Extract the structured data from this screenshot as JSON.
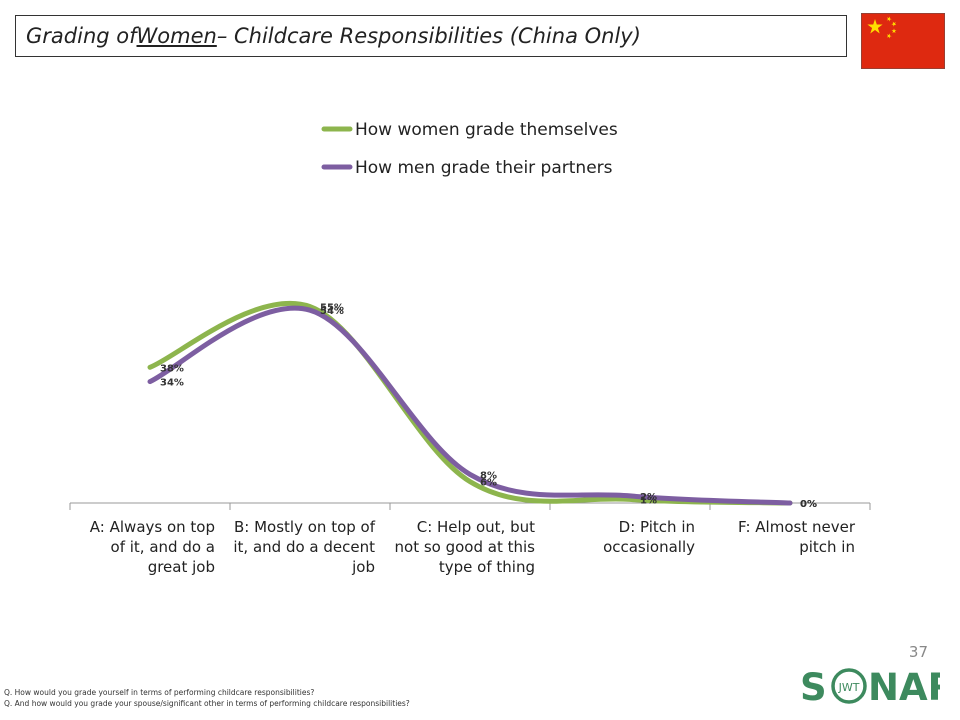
{
  "header": {
    "title_prefix": "Grading of ",
    "title_emphasis": "Women",
    "title_suffix": " – Childcare Responsibilities (China Only)"
  },
  "colors": {
    "women_series": "#8db54d",
    "men_series": "#7d5ea1",
    "flag_red": "#de2910",
    "flag_star": "#ffde00",
    "logo_green": "#3d8a5e"
  },
  "icons": {
    "flag": "china-flag-icon",
    "logo": "sonar-jwt-logo"
  },
  "chart_data": {
    "type": "line",
    "smooth": true,
    "categories": [
      [
        "A: Always on top",
        "of it, and do a",
        "great job"
      ],
      [
        "B: Mostly on top of",
        "it, and do a decent",
        "job"
      ],
      [
        "C: Help out, but",
        "not so good at this",
        "type of thing"
      ],
      [
        "D: Pitch in",
        "occasionally"
      ],
      [
        "F: Almost never",
        "pitch in"
      ]
    ],
    "series": [
      {
        "name": "How women grade themselves",
        "values": [
          38,
          55,
          6,
          1,
          0
        ],
        "labels": [
          "38%",
          "55%",
          "6%",
          "1%",
          "0%"
        ]
      },
      {
        "name": "How men grade their partners",
        "values": [
          34,
          54,
          8,
          2,
          0
        ],
        "labels": [
          "34%",
          "54%",
          "8%",
          "2%",
          "0%"
        ]
      }
    ],
    "ylim": [
      0,
      60
    ],
    "grid": false,
    "legend": "top-center"
  },
  "page_number": "37",
  "footnotes": [
    "Q. How would you grade yourself in terms of performing childcare responsibilities?",
    "Q. And how would you grade your spouse/significant other in terms of performing childcare responsibilities?"
  ],
  "logo": {
    "left": "S",
    "ring": "JWT",
    "right": "NAR"
  }
}
